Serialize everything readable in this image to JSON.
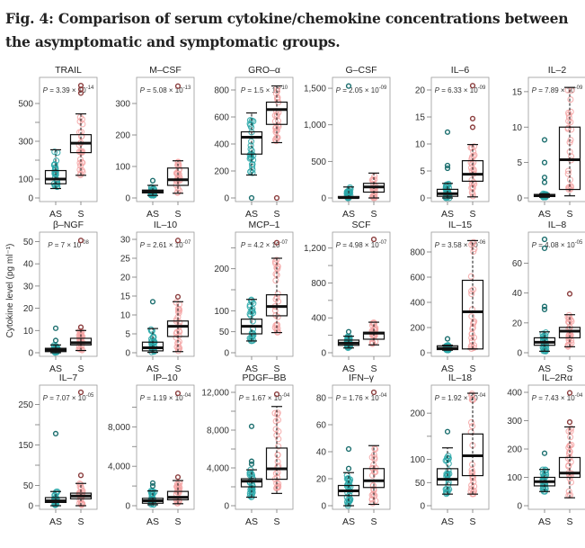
{
  "caption": "Fig. 4: Comparison of serum cytokine/chemokine concentrations between the asymptomatic and symptomatic groups.",
  "colors": {
    "AS": "#2aa7a8",
    "S": "#f4a6a6",
    "box": "#111111",
    "axis": "#888888",
    "text": "#333333"
  },
  "chart_data": {
    "type": "box",
    "ylabel": "Cytokine level (pg ml⁻¹)",
    "groups": [
      "AS",
      "S"
    ],
    "panels": [
      {
        "title": "TRAIL",
        "p": "3.39",
        "exp": "-14",
        "ylim": [
          0,
          600
        ],
        "ticks": [
          0,
          100,
          300,
          500
        ],
        "minor": [
          200,
          400
        ],
        "AS": {
          "min": 50,
          "q1": 75,
          "med": 100,
          "q3": 145,
          "max": 255,
          "out": []
        },
        "S": {
          "min": 120,
          "q1": 240,
          "med": 290,
          "q3": 335,
          "max": 445,
          "out": [
            555,
            575,
            595
          ]
        }
      },
      {
        "title": "M–CSF",
        "p": "5.08",
        "exp": "-13",
        "ylim": [
          0,
          360
        ],
        "ticks": [
          0,
          100,
          200,
          300
        ],
        "minor": [],
        "AS": {
          "min": 8,
          "q1": 16,
          "med": 20,
          "q3": 25,
          "max": 40,
          "out": [
            55
          ]
        },
        "S": {
          "min": 15,
          "q1": 40,
          "med": 58,
          "q3": 95,
          "max": 118,
          "out": [
            355
          ]
        }
      },
      {
        "title": "GRO–α",
        "p": "1.5",
        "exp": "-10",
        "ylim": [
          0,
          840
        ],
        "ticks": [
          0,
          200,
          400,
          600,
          800
        ],
        "minor": [],
        "AS": {
          "min": 170,
          "q1": 325,
          "med": 450,
          "q3": 490,
          "max": 630,
          "out": [
            0
          ]
        },
        "S": {
          "min": 410,
          "q1": 545,
          "med": 655,
          "q3": 710,
          "max": 830,
          "out": [
            0
          ]
        }
      },
      {
        "title": "G–CSF",
        "p": "2.05",
        "exp": "-09",
        "ylim": [
          0,
          1550
        ],
        "ticks": [
          0,
          500,
          1000,
          1500
        ],
        "minor": [],
        "AS": {
          "min": 0,
          "q1": 0,
          "med": 5,
          "q3": 20,
          "max": 150,
          "out": [
            1530
          ]
        },
        "S": {
          "min": 0,
          "q1": 80,
          "med": 150,
          "q3": 200,
          "max": 340,
          "out": []
        }
      },
      {
        "title": "IL–6",
        "p": "6.33",
        "exp": "-09",
        "ylim": [
          0,
          21
        ],
        "ticks": [
          0,
          5,
          10,
          15,
          20
        ],
        "minor": [],
        "AS": {
          "min": 0,
          "q1": 0.3,
          "med": 0.8,
          "q3": 1.6,
          "max": 2.7,
          "out": [
            5.5,
            6,
            12.2
          ]
        },
        "S": {
          "min": 0.2,
          "q1": 3.1,
          "med": 4.4,
          "q3": 6.9,
          "max": 9.9,
          "out": [
            13.1,
            14.7,
            20.8
          ]
        }
      },
      {
        "title": "IL–2",
        "p": "7.89",
        "exp": "-09",
        "ylim": [
          0,
          16
        ],
        "ticks": [
          0,
          5,
          10,
          15
        ],
        "minor": [],
        "AS": {
          "min": 0.1,
          "q1": 0.2,
          "med": 0.35,
          "q3": 0.5,
          "max": 0.6,
          "out": [
            2.2,
            2.9,
            5,
            8.2
          ]
        },
        "S": {
          "min": 0.3,
          "q1": 1.2,
          "med": 5.4,
          "q3": 10,
          "max": 15.6,
          "out": []
        }
      },
      {
        "title": "β–NGF",
        "p": "7",
        "exp": "-08",
        "ylim": [
          0,
          51
        ],
        "ticks": [
          0,
          10,
          20,
          30,
          40,
          50
        ],
        "minor": [],
        "AS": {
          "min": 0,
          "q1": 0.5,
          "med": 1.2,
          "q3": 2,
          "max": 3.5,
          "out": [
            5.5,
            11
          ]
        },
        "S": {
          "min": 1,
          "q1": 3.5,
          "med": 4.5,
          "q3": 6.5,
          "max": 10,
          "out": [
            11.5,
            50.5
          ]
        }
      },
      {
        "title": "IL–10",
        "p": "2.61",
        "exp": "-07",
        "ylim": [
          0,
          30
        ],
        "ticks": [
          0,
          5,
          10,
          15,
          20,
          25,
          30
        ],
        "minor": [],
        "AS": {
          "min": 0.1,
          "q1": 0.5,
          "med": 1.3,
          "q3": 2.8,
          "max": 6.4,
          "out": [
            13.5
          ]
        },
        "S": {
          "min": 0.3,
          "q1": 4.3,
          "med": 7,
          "q3": 8.4,
          "max": 13.5,
          "out": [
            14.8,
            29.7
          ]
        }
      },
      {
        "title": "MCP–1",
        "p": "4.2",
        "exp": "-07",
        "ylim": [
          0,
          270
        ],
        "ticks": [
          0,
          50,
          100,
          200
        ],
        "minor": [
          150,
          250
        ],
        "AS": {
          "min": 28,
          "q1": 45,
          "med": 63,
          "q3": 80,
          "max": 127,
          "out": []
        },
        "S": {
          "min": 48,
          "q1": 88,
          "med": 110,
          "q3": 138,
          "max": 225,
          "out": [
            262
          ]
        }
      },
      {
        "title": "SCF",
        "p": "4.98",
        "exp": "-07",
        "ylim": [
          0,
          1300
        ],
        "ticks": [
          0,
          400,
          800,
          1200
        ],
        "minor": [
          200,
          600,
          1000
        ],
        "AS": {
          "min": 55,
          "q1": 85,
          "med": 110,
          "q3": 145,
          "max": 190,
          "out": [
            240
          ]
        },
        "S": {
          "min": 90,
          "q1": 155,
          "med": 225,
          "q3": 235,
          "max": 350,
          "out": [
            1300
          ]
        }
      },
      {
        "title": "IL–15",
        "p": "3.58",
        "exp": "-06",
        "ylim": [
          0,
          900
        ],
        "ticks": [
          0,
          200,
          400,
          600,
          800
        ],
        "minor": [],
        "AS": {
          "min": 20,
          "q1": 25,
          "med": 35,
          "q3": 55,
          "max": 60,
          "out": [
            110
          ]
        },
        "S": {
          "min": 30,
          "q1": 30,
          "med": 325,
          "q3": 575,
          "max": 890,
          "out": []
        }
      },
      {
        "title": "IL–8",
        "p": "4.08",
        "exp": "-05",
        "ylim": [
          0,
          76
        ],
        "ticks": [
          0,
          20,
          40,
          60
        ],
        "minor": [],
        "AS": {
          "min": 1,
          "q1": 5,
          "med": 7,
          "q3": 10,
          "max": 14,
          "out": [
            29,
            31,
            70,
            76
          ]
        },
        "S": {
          "min": 4,
          "q1": 10,
          "med": 14.5,
          "q3": 17,
          "max": 25.5,
          "out": [
            39.5
          ]
        }
      },
      {
        "title": "IL–7",
        "p": "7.07",
        "exp": "-05",
        "ylim": [
          0,
          280
        ],
        "ticks": [
          0,
          50,
          150,
          250
        ],
        "minor": [
          100,
          200
        ],
        "AS": {
          "min": 0,
          "q1": 8,
          "med": 12,
          "q3": 20,
          "max": 35,
          "out": [
            178
          ]
        },
        "S": {
          "min": 0,
          "q1": 17,
          "med": 24,
          "q3": 31,
          "max": 55,
          "out": [
            75,
            280
          ]
        }
      },
      {
        "title": "IP–10",
        "p": "1.19",
        "exp": "-04",
        "ylim": [
          0,
          11500
        ],
        "ticks": [
          0,
          4000,
          8000
        ],
        "minor": [
          2000,
          6000,
          10000
        ],
        "AS": {
          "min": 100,
          "q1": 250,
          "med": 500,
          "q3": 750,
          "max": 1500,
          "out": [
            2000,
            2300
          ]
        },
        "S": {
          "min": 200,
          "q1": 600,
          "med": 850,
          "q3": 1450,
          "max": 2550,
          "out": [
            2900,
            11400
          ]
        }
      },
      {
        "title": "PDGF–BB",
        "p": "1.67",
        "exp": "-04",
        "ylim": [
          0,
          12000
        ],
        "ticks": [
          0,
          4000,
          8000,
          12000
        ],
        "minor": [
          2000,
          6000,
          10000
        ],
        "AS": {
          "min": 900,
          "q1": 2000,
          "med": 2600,
          "q3": 2850,
          "max": 3800,
          "out": [
            4400,
            4700,
            8400
          ]
        },
        "S": {
          "min": 1300,
          "q1": 2800,
          "med": 3900,
          "q3": 6100,
          "max": 10500,
          "out": [
            11800
          ]
        }
      },
      {
        "title": "IFN–γ",
        "p": "1.76",
        "exp": "-04",
        "ylim": [
          0,
          84
        ],
        "ticks": [
          0,
          20,
          40,
          60,
          80
        ],
        "minor": [],
        "AS": {
          "min": 0,
          "q1": 7.5,
          "med": 11,
          "q3": 15,
          "max": 24.5,
          "out": [
            27.5,
            42
          ]
        },
        "S": {
          "min": 1,
          "q1": 13.5,
          "med": 18.5,
          "q3": 27.5,
          "max": 44.5,
          "out": [
            84
          ]
        }
      },
      {
        "title": "IL–18",
        "p": "1.92",
        "exp": "-04",
        "ylim": [
          0,
          245
        ],
        "ticks": [
          0,
          50,
          100,
          200
        ],
        "minor": [
          150
        ],
        "AS": {
          "min": 25,
          "q1": 45,
          "med": 57,
          "q3": 80,
          "max": 125,
          "out": [
            160
          ]
        },
        "S": {
          "min": 25,
          "q1": 65,
          "med": 108,
          "q3": 155,
          "max": 243,
          "out": []
        }
      },
      {
        "title": "IL–2Rα",
        "p": "7.43",
        "exp": "-04",
        "ylim": [
          0,
          400
        ],
        "ticks": [
          0,
          100,
          200,
          300,
          400
        ],
        "minor": [],
        "AS": {
          "min": 50,
          "q1": 70,
          "med": 85,
          "q3": 100,
          "max": 128,
          "out": [
            185
          ]
        },
        "S": {
          "min": 28,
          "q1": 100,
          "med": 115,
          "q3": 170,
          "max": 278,
          "out": [
            295,
            398
          ]
        }
      }
    ]
  }
}
